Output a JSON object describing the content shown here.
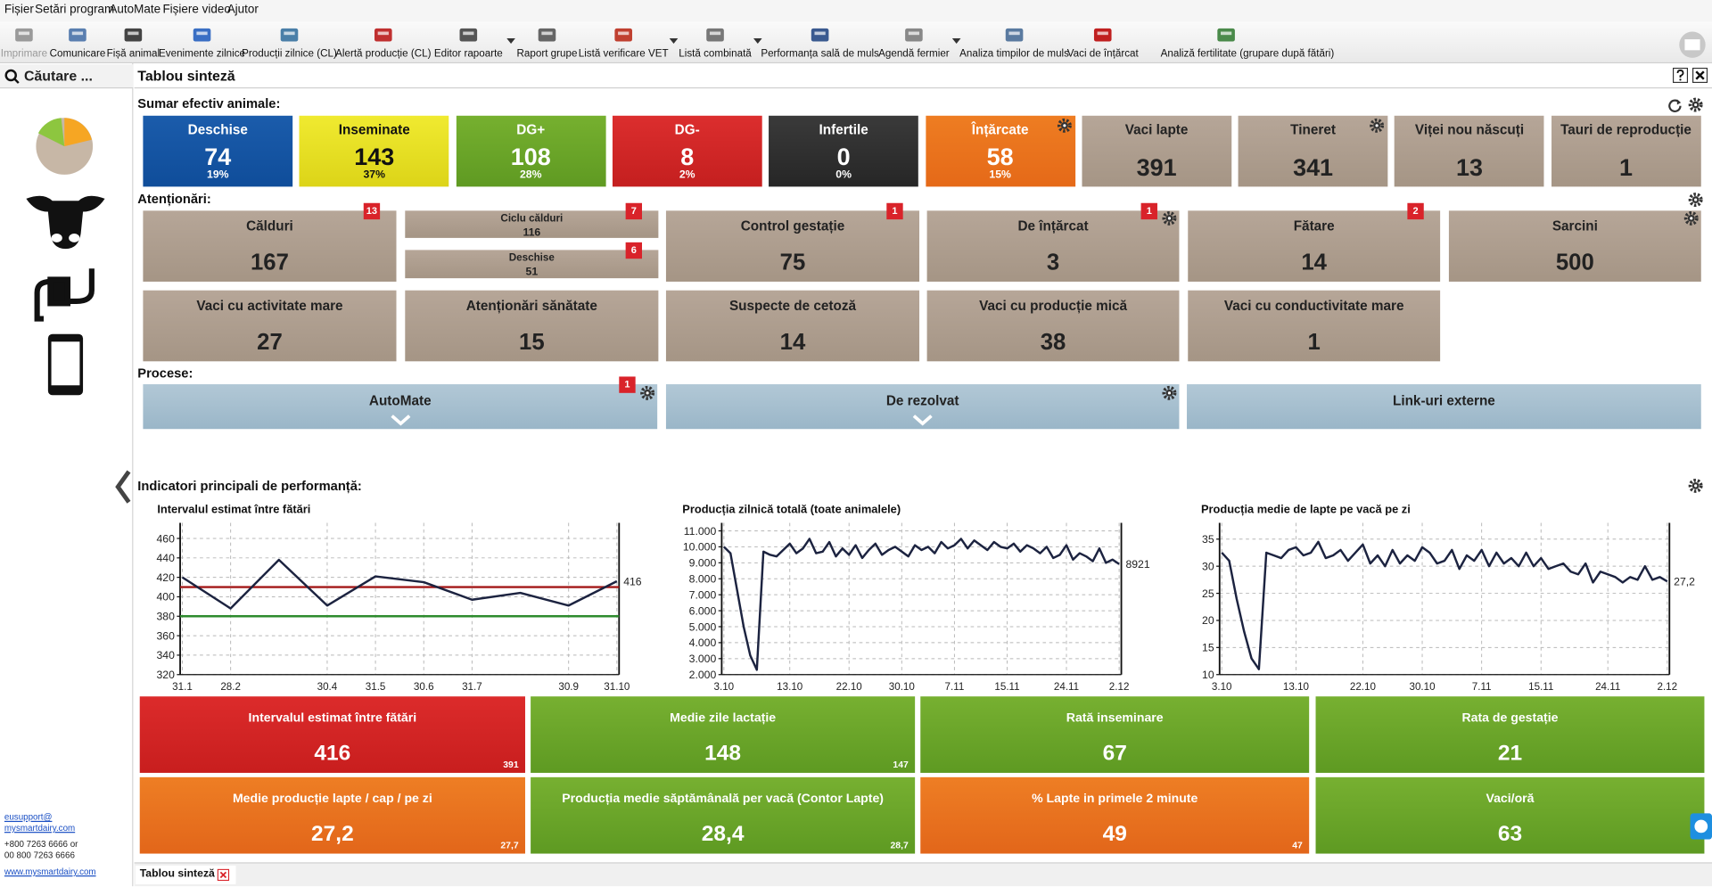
{
  "menu": [
    "Fișier",
    "Setări program",
    "AutoMate",
    "Fișiere video",
    "Ajutor"
  ],
  "toolbar": [
    "Imprimare",
    "Comunicare",
    "Fișă animal",
    "Evenimente zilnice",
    "Producții zilnice (CL)",
    "Alertă producție (CL)",
    "Editor rapoarte",
    "Raport grupe",
    "Listă verificare VET",
    "Listă combinată",
    "Performanța sală de muls",
    "Agendă fermier",
    "Analiza timpilor de muls",
    "Vaci de înțărcat",
    "Analiză fertilitate (grupare după fătări)"
  ],
  "search": "Căutare ...",
  "contact": [
    "eusupport@",
    "mysmartdairy.com",
    "+800 7263 6666 or",
    "00 800 7263 6666",
    "www.mysmartdairy.com"
  ],
  "panel_title": "Tablou sinteză",
  "summary": {
    "title": "Sumar efectiv animale:",
    "tiles": [
      {
        "label": "Deschise",
        "value": 74,
        "percent": "19%"
      },
      {
        "label": "Inseminate",
        "value": 143,
        "percent": "37%"
      },
      {
        "label": "DG+",
        "value": 108,
        "percent": "28%"
      },
      {
        "label": "DG-",
        "value": 8,
        "percent": "2%"
      },
      {
        "label": "Infertile",
        "value": 0,
        "percent": "0%"
      },
      {
        "label": "Înțărcate",
        "value": 58,
        "percent": "15%"
      },
      {
        "label": "Vaci lapte",
        "value": 391
      },
      {
        "label": "Tineret",
        "value": 341
      },
      {
        "label": "Viței nou născuți",
        "value": 13
      },
      {
        "label": "Tauri de reproducție",
        "value": 1
      }
    ]
  },
  "alerts": {
    "title": "Atenționări:",
    "tiles": [
      {
        "label": "Călduri",
        "value": 167,
        "badge": 13
      },
      {
        "label": "Ciclu călduri",
        "value": 116,
        "badge": 7
      },
      {
        "label": "Deschise",
        "value": 51,
        "badge": 6
      },
      {
        "label": "Control gestație",
        "value": 75,
        "badge": 1
      },
      {
        "label": "De înțărcat",
        "value": 3,
        "badge": 1
      },
      {
        "label": "Fătare",
        "value": 14,
        "badge": 2
      },
      {
        "label": "Sarcini",
        "value": 500
      },
      {
        "label": "Vaci cu activitate mare",
        "value": 27
      },
      {
        "label": "Atenționări sănătate",
        "value": 15
      },
      {
        "label": "Suspecte de cetoză",
        "value": 14
      },
      {
        "label": "Vaci cu producție mică",
        "value": 38
      },
      {
        "label": "Vaci cu conductivitate mare",
        "value": 1
      }
    ]
  },
  "processes": {
    "title": "Procese:",
    "items": [
      {
        "label": "AutoMate",
        "badge": 1
      },
      {
        "label": "De rezolvat"
      },
      {
        "label": "Link-uri externe"
      }
    ]
  },
  "kpi_title": "Indicatori principali de performanță:",
  "chart_data": [
    {
      "type": "line",
      "title": "Intervalul estimat între fătări",
      "color": "#1c2340",
      "categories": [
        "31.1",
        "28.2",
        null,
        "30.4",
        "31.5",
        "30.6",
        "31.7",
        null,
        "30.9",
        "31.10"
      ],
      "values": [
        420,
        388,
        438,
        391,
        421,
        415,
        397,
        404,
        391,
        416
      ],
      "ylim": [
        320,
        476
      ],
      "yticks": [
        320,
        340,
        360,
        380,
        400,
        420,
        440,
        460
      ],
      "grid": true,
      "ref_lines": [
        {
          "value": 410,
          "color": "#a31818"
        },
        {
          "value": 380,
          "color": "#2e8b2e"
        }
      ]
    },
    {
      "type": "line",
      "title": "Producția zilnică totală (toate animalele)",
      "color": "#1c2340",
      "categories": [
        "3.10",
        null,
        null,
        null,
        null,
        null,
        null,
        null,
        null,
        null,
        "13.10",
        null,
        null,
        null,
        null,
        null,
        null,
        null,
        null,
        "22.10",
        null,
        null,
        null,
        null,
        null,
        null,
        null,
        "30.10",
        null,
        null,
        null,
        null,
        null,
        null,
        null,
        "7.11",
        null,
        null,
        null,
        null,
        null,
        null,
        null,
        "15.11",
        null,
        null,
        null,
        null,
        null,
        null,
        null,
        null,
        "24.11",
        null,
        null,
        null,
        null,
        null,
        null,
        null,
        "2.12"
      ],
      "values": [
        10000,
        9600,
        7300,
        5000,
        3200,
        2300,
        9700,
        9500,
        9400,
        9800,
        10200,
        9600,
        9900,
        10500,
        9600,
        9700,
        10300,
        9400,
        9900,
        9500,
        10100,
        9300,
        9800,
        10200,
        9500,
        9800,
        10000,
        9700,
        9400,
        10100,
        9800,
        10000,
        9600,
        10300,
        9900,
        10100,
        10500,
        9900,
        10400,
        10100,
        9800,
        10300,
        10000,
        9900,
        10200,
        9700,
        10100,
        9900,
        9600,
        10000,
        9300,
        9500,
        10100,
        9200,
        9600,
        9400,
        9100,
        9900,
        9000,
        9200,
        8921
      ],
      "ylim": [
        2000,
        11500
      ],
      "yticks": [
        {
          "value": 2000,
          "label": "2.000"
        },
        {
          "value": 3000,
          "label": "3.000"
        },
        {
          "value": 4000,
          "label": "4.000"
        },
        {
          "value": 5000,
          "label": "5.000"
        },
        {
          "value": 6000,
          "label": "6.000"
        },
        {
          "value": 7000,
          "label": "7.000"
        },
        {
          "value": 8000,
          "label": "8.000"
        },
        {
          "value": 9000,
          "label": "9.000"
        },
        {
          "value": 10000,
          "label": "10.000"
        },
        {
          "value": 11000,
          "label": "11.000"
        }
      ],
      "grid": true
    },
    {
      "type": "line",
      "title": "Producția medie de lapte pe vacă pe zi",
      "color": "#1c2340",
      "categories": [
        "3.10",
        null,
        null,
        null,
        null,
        null,
        null,
        null,
        null,
        null,
        "13.10",
        null,
        null,
        null,
        null,
        null,
        null,
        null,
        null,
        "22.10",
        null,
        null,
        null,
        null,
        null,
        null,
        null,
        "30.10",
        null,
        null,
        null,
        null,
        null,
        null,
        null,
        "7.11",
        null,
        null,
        null,
        null,
        null,
        null,
        null,
        "15.11",
        null,
        null,
        null,
        null,
        null,
        null,
        null,
        null,
        "24.11",
        null,
        null,
        null,
        null,
        null,
        null,
        null,
        "2.12"
      ],
      "values": [
        32.5,
        31,
        24,
        18,
        13,
        11,
        32.5,
        32,
        31.5,
        33,
        33.5,
        32,
        32.5,
        34.5,
        31.5,
        32,
        33,
        31,
        32.5,
        34,
        30.5,
        32,
        30,
        33,
        30.5,
        32,
        31,
        33.5,
        32.5,
        30.5,
        31,
        33,
        29.5,
        32,
        31,
        33,
        30,
        32.5,
        30.5,
        31.5,
        30,
        32.5,
        30,
        31.5,
        29.5,
        30,
        30.5,
        29,
        28.5,
        30.5,
        27,
        29,
        28.5,
        28,
        27,
        28,
        27.5,
        30,
        27.5,
        28,
        27.2
      ],
      "value_labels": [
        null,
        null,
        null,
        null,
        null,
        null,
        null,
        null,
        null,
        null,
        null,
        null,
        null,
        null,
        null,
        null,
        null,
        null,
        null,
        null,
        null,
        null,
        null,
        null,
        null,
        null,
        null,
        null,
        null,
        null,
        null,
        null,
        null,
        null,
        null,
        null,
        null,
        null,
        null,
        null,
        null,
        null,
        null,
        null,
        null,
        null,
        null,
        null,
        null,
        null,
        null,
        null,
        null,
        null,
        null,
        null,
        null,
        null,
        null,
        null,
        "27,2"
      ],
      "ylim": [
        10,
        38
      ],
      "yticks": [
        10,
        15,
        20,
        25,
        30,
        35
      ],
      "grid": true
    }
  ],
  "kpi_tiles": [
    {
      "label": "Intervalul estimat între fătări",
      "value": 416,
      "previous": 391
    },
    {
      "label": "Medie zile lactație",
      "value": 148,
      "previous": 147
    },
    {
      "label": "Rată inseminare",
      "value": 67
    },
    {
      "label": "Rata de gestație",
      "value": 21
    },
    {
      "label": "Medie producție lapte / cap / pe zi",
      "value": "27,2",
      "previous": "27,7"
    },
    {
      "label": "Producția medie săptămânală per vacă (Contor Lapte)",
      "value": "28,4",
      "previous": "28,7"
    },
    {
      "label": "% Lapte in primele 2 minute",
      "value": 49,
      "previous": 47
    },
    {
      "label": "Vaci/oră",
      "value": 63
    }
  ],
  "tabs": [
    "Tablou sinteză"
  ]
}
